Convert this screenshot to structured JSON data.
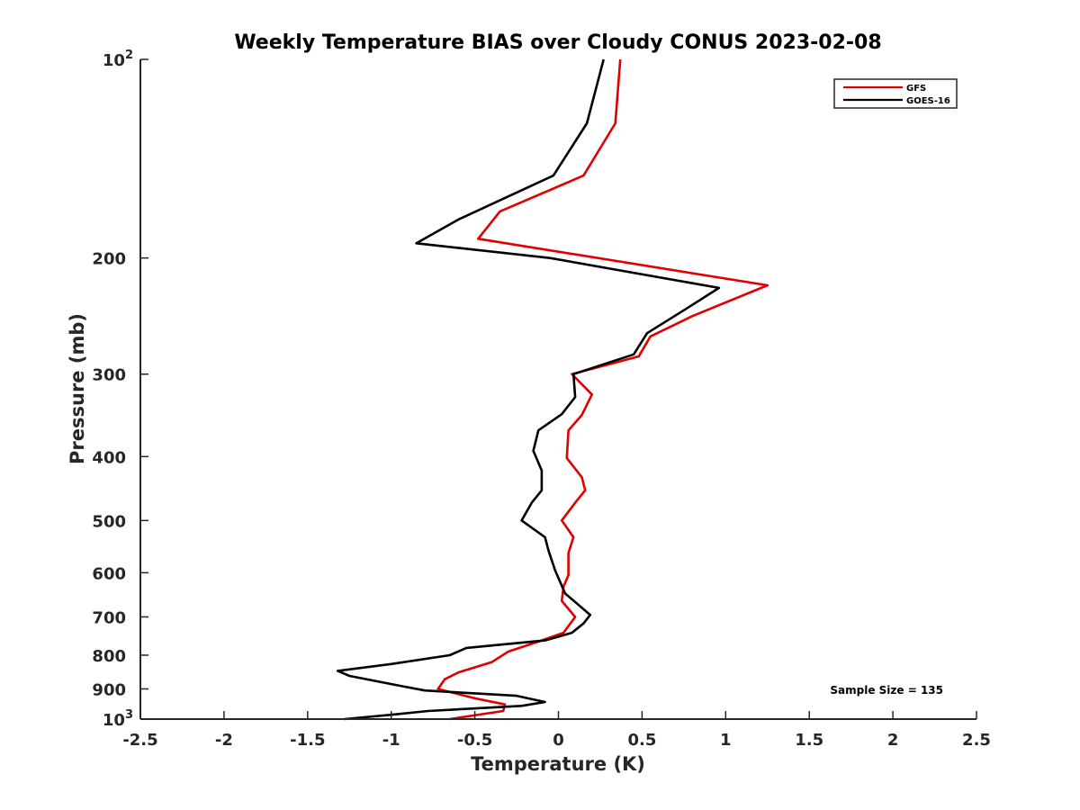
{
  "chart_data": {
    "type": "line",
    "title": "Weekly Temperature BIAS over Cloudy CONUS 2023-02-08",
    "xlabel": "Temperature (K)",
    "ylabel": "Pressure (mb)",
    "xlim": [
      -2.5,
      2.5
    ],
    "ylim": [
      100,
      1000
    ],
    "yscale": "log",
    "y_reversed": true,
    "grid": false,
    "legend_position": "top-right",
    "x_ticks": [
      -2.5,
      -2,
      -1.5,
      -1,
      -0.5,
      0,
      0.5,
      1,
      1.5,
      2,
      2.5
    ],
    "x_tick_labels": [
      "-2.5",
      "-2",
      "-1.5",
      "-1",
      "-0.5",
      "0",
      "0.5",
      "1",
      "1.5",
      "2",
      "2.5"
    ],
    "y_ticks": [
      200,
      300,
      400,
      500,
      600,
      700,
      800,
      900
    ],
    "y_tick_labels": [
      "200",
      "300",
      "400",
      "500",
      "600",
      "700",
      "800",
      "900"
    ],
    "y_end_ticks": [
      {
        "value": 100,
        "base": "10",
        "exp": "2"
      },
      {
        "value": 1000,
        "base": "10",
        "exp": "3"
      }
    ],
    "annotation": "Sample Size = 135",
    "series": [
      {
        "name": "GFS",
        "color": "#e00000",
        "points": [
          [
            0.37,
            100
          ],
          [
            0.34,
            125
          ],
          [
            0.15,
            150
          ],
          [
            -0.35,
            170
          ],
          [
            -0.48,
            187
          ],
          [
            1.25,
            220
          ],
          [
            0.8,
            245
          ],
          [
            0.55,
            263
          ],
          [
            0.48,
            282
          ],
          [
            0.08,
            300
          ],
          [
            0.2,
            322
          ],
          [
            0.14,
            346
          ],
          [
            0.06,
            365
          ],
          [
            0.05,
            402
          ],
          [
            0.14,
            430
          ],
          [
            0.16,
            450
          ],
          [
            0.1,
            470
          ],
          [
            0.02,
            500
          ],
          [
            0.09,
            530
          ],
          [
            0.06,
            560
          ],
          [
            0.06,
            605
          ],
          [
            0.03,
            630
          ],
          [
            0.02,
            662
          ],
          [
            0.1,
            700
          ],
          [
            0.03,
            740
          ],
          [
            -0.1,
            760
          ],
          [
            -0.3,
            790
          ],
          [
            -0.4,
            820
          ],
          [
            -0.6,
            850
          ],
          [
            -0.68,
            870
          ],
          [
            -0.72,
            900
          ],
          [
            -0.5,
            930
          ],
          [
            -0.32,
            950
          ],
          [
            -0.33,
            972
          ],
          [
            -0.65,
            1000
          ]
        ]
      },
      {
        "name": "GOES-16",
        "color": "#000000",
        "points": [
          [
            0.27,
            100
          ],
          [
            0.17,
            125
          ],
          [
            -0.03,
            150
          ],
          [
            -0.6,
            175
          ],
          [
            -0.85,
            190
          ],
          [
            -0.05,
            200
          ],
          [
            0.96,
            222
          ],
          [
            0.75,
            240
          ],
          [
            0.53,
            260
          ],
          [
            0.45,
            280
          ],
          [
            0.09,
            300
          ],
          [
            0.1,
            325
          ],
          [
            0.02,
            345
          ],
          [
            -0.12,
            365
          ],
          [
            -0.15,
            392
          ],
          [
            -0.1,
            420
          ],
          [
            -0.1,
            450
          ],
          [
            -0.16,
            470
          ],
          [
            -0.22,
            500
          ],
          [
            -0.08,
            530
          ],
          [
            -0.06,
            555
          ],
          [
            -0.02,
            595
          ],
          [
            0.04,
            645
          ],
          [
            0.19,
            695
          ],
          [
            0.15,
            716
          ],
          [
            0.08,
            740
          ],
          [
            -0.08,
            760
          ],
          [
            -0.55,
            780
          ],
          [
            -0.65,
            800
          ],
          [
            -1.0,
            825
          ],
          [
            -1.32,
            845
          ],
          [
            -1.25,
            860
          ],
          [
            -0.95,
            890
          ],
          [
            -0.8,
            905
          ],
          [
            -0.25,
            922
          ],
          [
            -0.08,
            942
          ],
          [
            -0.22,
            955
          ],
          [
            -0.78,
            972
          ],
          [
            -1.0,
            985
          ],
          [
            -1.28,
            1000
          ]
        ]
      }
    ]
  }
}
